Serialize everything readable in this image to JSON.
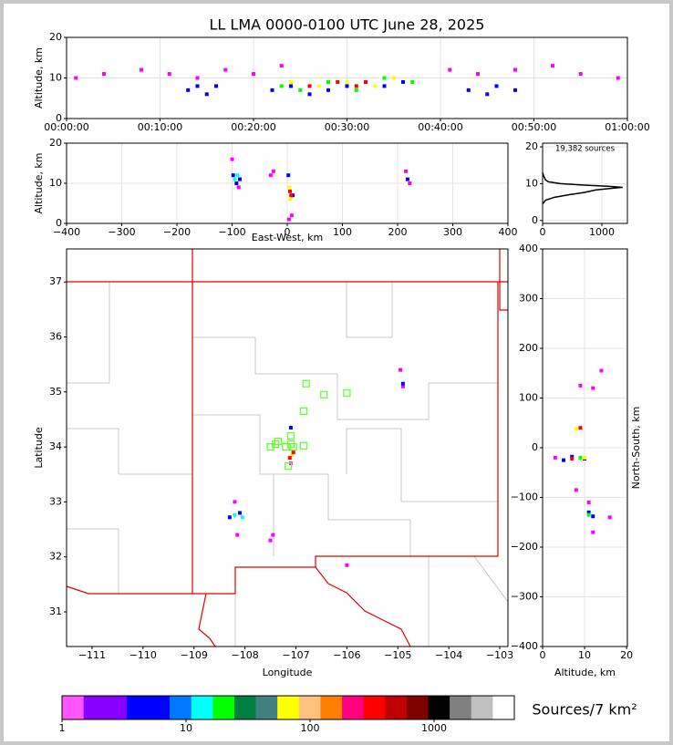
{
  "chart_data": [
    {
      "type": "scatter",
      "title": "LL LMA 0000-0100 UTC June 28, 2025",
      "y_label": "Altitude, km",
      "xlim": [
        0,
        60
      ],
      "ylim": [
        0,
        20
      ],
      "grid": true,
      "xticks": [
        {
          "value": 0,
          "label": "00:00:00"
        },
        {
          "value": 10,
          "label": "00:10:00"
        },
        {
          "value": 20,
          "label": "00:20:00"
        },
        {
          "value": 30,
          "label": "00:30:00"
        },
        {
          "value": 40,
          "label": "00:40:00"
        },
        {
          "value": 50,
          "label": "00:50:00"
        },
        {
          "value": 60,
          "label": "01:00:00"
        }
      ],
      "yticks": [
        0,
        10,
        20
      ],
      "series": [
        {
          "color": "#ff00ff",
          "x": [
            1,
            4,
            8,
            11,
            14,
            17,
            20,
            23,
            41,
            44,
            48,
            52,
            55,
            59
          ],
          "values": [
            10,
            11,
            12,
            11,
            10,
            12,
            11,
            13,
            12,
            11,
            12,
            13,
            11,
            10
          ]
        },
        {
          "color": "#0000ff",
          "x": [
            13,
            14,
            15,
            16,
            22,
            24,
            26,
            28,
            30,
            32,
            34,
            36,
            43,
            45,
            46,
            48
          ],
          "values": [
            7,
            8,
            6,
            8,
            7,
            8,
            6,
            7,
            8,
            9,
            8,
            9,
            7,
            6,
            8,
            7
          ]
        },
        {
          "color": "#00ff00",
          "x": [
            23,
            25,
            28,
            31,
            34,
            37
          ],
          "values": [
            8,
            7,
            9,
            7,
            10,
            9
          ]
        },
        {
          "color": "#ffff00",
          "x": [
            24,
            27,
            30,
            33,
            35
          ],
          "values": [
            9,
            8,
            9,
            8,
            10
          ]
        },
        {
          "color": "#ff0000",
          "x": [
            26,
            29,
            31,
            32
          ],
          "values": [
            8,
            9,
            8,
            9
          ]
        }
      ]
    },
    {
      "type": "scatter",
      "x_label": "East-West, km",
      "y_label": "Altitude, km",
      "xlim": [
        -400,
        400
      ],
      "ylim": [
        0,
        20
      ],
      "grid": true,
      "xticks": [
        {
          "value": -400,
          "label": "−400"
        },
        {
          "value": -300,
          "label": "−300"
        },
        {
          "value": -200,
          "label": "−200"
        },
        {
          "value": -100,
          "label": "−100"
        },
        0,
        100,
        200,
        300,
        400
      ],
      "yticks": [
        0,
        10,
        20
      ],
      "series": [
        {
          "color": "#ff00ff",
          "x": [
            -100,
            -88,
            -25,
            -30,
            215,
            222,
            3,
            8
          ],
          "values": [
            16,
            9,
            13,
            12,
            13,
            10,
            1,
            2
          ]
        },
        {
          "color": "#0000ff",
          "x": [
            -98,
            -92,
            -86,
            2,
            10,
            218
          ],
          "values": [
            12,
            10,
            11,
            12,
            7,
            11
          ]
        },
        {
          "color": "#00ffff",
          "x": [
            -95,
            -90
          ],
          "values": [
            11,
            12
          ]
        },
        {
          "color": "#ffff00",
          "x": [
            4,
            6
          ],
          "values": [
            9,
            6
          ]
        },
        {
          "color": "#ff0000",
          "x": [
            5,
            7
          ],
          "values": [
            8,
            7
          ]
        }
      ]
    },
    {
      "type": "line",
      "annotation": "19,382 sources",
      "xlim": [
        0,
        1430
      ],
      "ylim": [
        -0.8,
        21
      ],
      "grid": true,
      "xticks": [
        0,
        1000
      ],
      "yticks": [
        0,
        10,
        20
      ],
      "series": [
        {
          "color": "#000000",
          "x": [
            0,
            50,
            200,
            450,
            700,
            900,
            1150,
            1350,
            1100,
            700,
            300,
            100,
            50,
            20,
            0
          ],
          "values": [
            4.5,
            5.5,
            6.3,
            7,
            7.6,
            8.3,
            8.7,
            9,
            9.3,
            9.6,
            10,
            10.5,
            11,
            12,
            13
          ]
        }
      ]
    },
    {
      "type": "scatter",
      "x_label": "Longitude",
      "y_label": "Latitude",
      "xlim": [
        -111.5,
        -102.84
      ],
      "ylim": [
        30.37,
        37.6
      ],
      "grid": false,
      "xticks": [
        {
          "value": -111,
          "label": "−111"
        },
        {
          "value": -110,
          "label": "−110"
        },
        {
          "value": -109,
          "label": "−109"
        },
        {
          "value": -108,
          "label": "−108"
        },
        {
          "value": -107,
          "label": "−107"
        },
        {
          "value": -106,
          "label": "−106"
        },
        {
          "value": -105,
          "label": "−105"
        },
        {
          "value": -104,
          "label": "−104"
        },
        {
          "value": -103,
          "label": "−103"
        }
      ],
      "yticks": [
        31,
        32,
        33,
        34,
        35,
        36,
        37
      ],
      "series": [
        {
          "color": "#ff00ff",
          "x": [
            -108.2,
            -107.45,
            -104.95,
            -104.9,
            -107.1,
            -106.0,
            -108.15,
            -107.5
          ],
          "values": [
            33.0,
            32.4,
            35.4,
            35.1,
            33.7,
            31.85,
            32.4,
            32.3
          ]
        },
        {
          "color": "#0000ff",
          "x": [
            -108.3,
            -108.1,
            -104.9,
            -107.1
          ],
          "values": [
            32.72,
            32.8,
            35.15,
            34.35
          ]
        },
        {
          "color": "#00ffff",
          "x": [
            -108.2,
            -108.05
          ],
          "values": [
            32.76,
            32.72
          ]
        },
        {
          "color": "#ffff00",
          "x": [
            -107.08
          ],
          "values": [
            33.85
          ]
        },
        {
          "color": "#ff0000",
          "x": [
            -107.12,
            -107.05
          ],
          "values": [
            33.8,
            33.9
          ]
        },
        {
          "color": "#66ff33",
          "marker": "square-open",
          "x": [
            -106.8,
            -106.45,
            -106.0,
            -106.85,
            -107.4,
            -107.35,
            -107.5,
            -107.1,
            -107.1,
            -107.2,
            -106.85,
            -107.05,
            -107.15
          ],
          "values": [
            35.15,
            34.95,
            34.98,
            34.65,
            34.05,
            34.1,
            34.0,
            34.2,
            34.05,
            34.0,
            34.02,
            34.0,
            33.65
          ]
        }
      ]
    },
    {
      "type": "scatter",
      "x_label": "Altitude, km",
      "y_label": "North-South, km",
      "xlim": [
        0,
        20.2
      ],
      "ylim": [
        -400,
        400
      ],
      "grid": true,
      "xticks": [
        0,
        10,
        20
      ],
      "yticks": [
        {
          "value": -400,
          "label": "−400"
        },
        {
          "value": -300,
          "label": "−300"
        },
        {
          "value": -200,
          "label": "−200"
        },
        {
          "value": -100,
          "label": "−100"
        },
        0,
        100,
        200,
        300,
        400
      ],
      "series": [
        {
          "color": "#ff00ff",
          "x": [
            9,
            12,
            14,
            11,
            8,
            3,
            16,
            12
          ],
          "values": [
            125,
            120,
            155,
            -110,
            -85,
            -20,
            -140,
            -170
          ]
        },
        {
          "color": "#0000ff",
          "x": [
            5,
            7,
            10,
            12,
            11
          ],
          "values": [
            -25,
            -18,
            -22,
            -138,
            -130
          ]
        },
        {
          "color": "#00ff00",
          "x": [
            9,
            11
          ],
          "values": [
            -20,
            -135
          ]
        },
        {
          "color": "#ffff00",
          "x": [
            8,
            10
          ],
          "values": [
            38,
            -20
          ]
        },
        {
          "color": "#ff0000",
          "x": [
            9,
            7
          ],
          "values": [
            40,
            -22
          ]
        }
      ]
    },
    {
      "type": "colorbar",
      "label": "Sources/7 km²",
      "log": true,
      "xlim": [
        1,
        4440
      ],
      "xticks": [
        1,
        10,
        100,
        1000
      ],
      "colors": [
        "#ff55ff",
        "#8800ff",
        "#8800ff",
        "#0000ff",
        "#0000ff",
        "#0077ff",
        "#00ffff",
        "#00ff00",
        "#008040",
        "#408080",
        "#ffff00",
        "#ffc080",
        "#ff8000",
        "#ff0080",
        "#ff0000",
        "#c00000",
        "#800000",
        "#000000",
        "#808080",
        "#c0c0c0",
        "#ffffff"
      ]
    }
  ]
}
